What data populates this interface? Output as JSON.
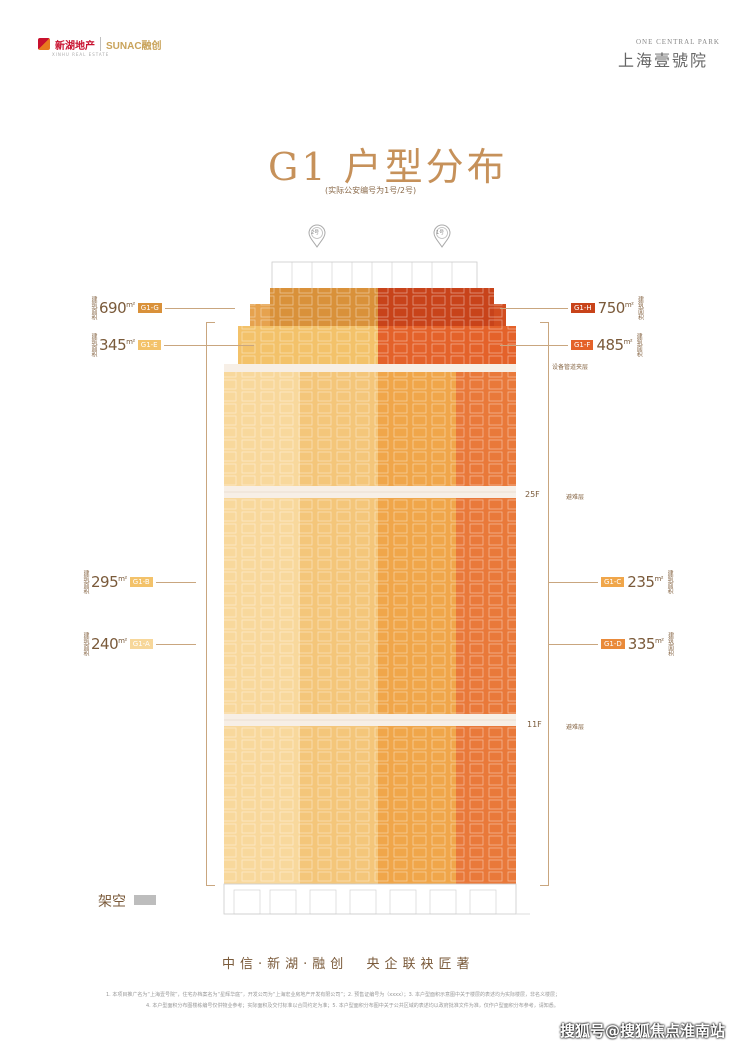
{
  "header": {
    "brand_left": "新湖地产",
    "brand_left_sub": "XINHU REAL ESTATE",
    "brand_right": "SUNAC融创",
    "project_en": "ONE CENTRAL PARK",
    "project_cn": "上海壹號院"
  },
  "title": {
    "main": "G1 户型分布",
    "sub": "(实际公安编号为1号/2号)"
  },
  "pins": [
    {
      "label": "2号"
    },
    {
      "label": "1号"
    }
  ],
  "left_units": [
    {
      "area": "690",
      "unit": "m²",
      "side_text": "建筑面积",
      "tag": "G1-G",
      "tag_color": "#d9913a"
    },
    {
      "area": "345",
      "unit": "m²",
      "side_text": "建筑面积",
      "tag": "G1-E",
      "tag_color": "#f3c26a"
    },
    {
      "area": "295",
      "unit": "m²",
      "side_text": "建筑面积",
      "tag": "G1-B",
      "tag_color": "#f3c26a"
    },
    {
      "area": "240",
      "unit": "m²",
      "side_text": "建筑面积",
      "tag": "G1-A",
      "tag_color": "#f7d79a"
    }
  ],
  "right_units": [
    {
      "area": "750",
      "unit": "m²",
      "side_text": "建筑面积",
      "tag": "G1-H",
      "tag_color": "#c8431a"
    },
    {
      "area": "485",
      "unit": "m²",
      "side_text": "建筑面积",
      "tag": "G1-F",
      "tag_color": "#e4622a"
    },
    {
      "area": "235",
      "unit": "m²",
      "side_text": "建筑面积",
      "tag": "G1-C",
      "tag_color": "#f0a64a"
    },
    {
      "area": "335",
      "unit": "m²",
      "side_text": "建筑面积",
      "tag": "G1-D",
      "tag_color": "#e98a3a"
    }
  ],
  "floor_notes": {
    "equipment": "设备管道夹层",
    "refuge_upper": "避难层",
    "refuge_lower": "避难层",
    "floor_upper": "25F",
    "floor_lower": "11F"
  },
  "ground": {
    "label": "架空"
  },
  "footer": {
    "partners": "中信·新湖·融创  央企联袂匠著",
    "disclaimer_1": "1. 本项目推广名为“上海壹号院”，住宅办档案名为“星辉华庭”，开发公司为“上海宏业房地产开发有限公司”；2. 预售证编号为（xxxx）；3. 本户型面积示意图中关于楼层的表述均为实际楼层，非名义楼层；",
    "disclaimer_2": "4. 本户型面积分布图楼栋编号仅供物业参考；实际面积及交付标准以合同约定为准；5. 本户型面积分布图中关于公共区域的表述均以政府批准文件为准，仅作户型面积分布参考，请知悉。",
    "watermark": "搜狐号@搜狐焦点淮南站"
  }
}
